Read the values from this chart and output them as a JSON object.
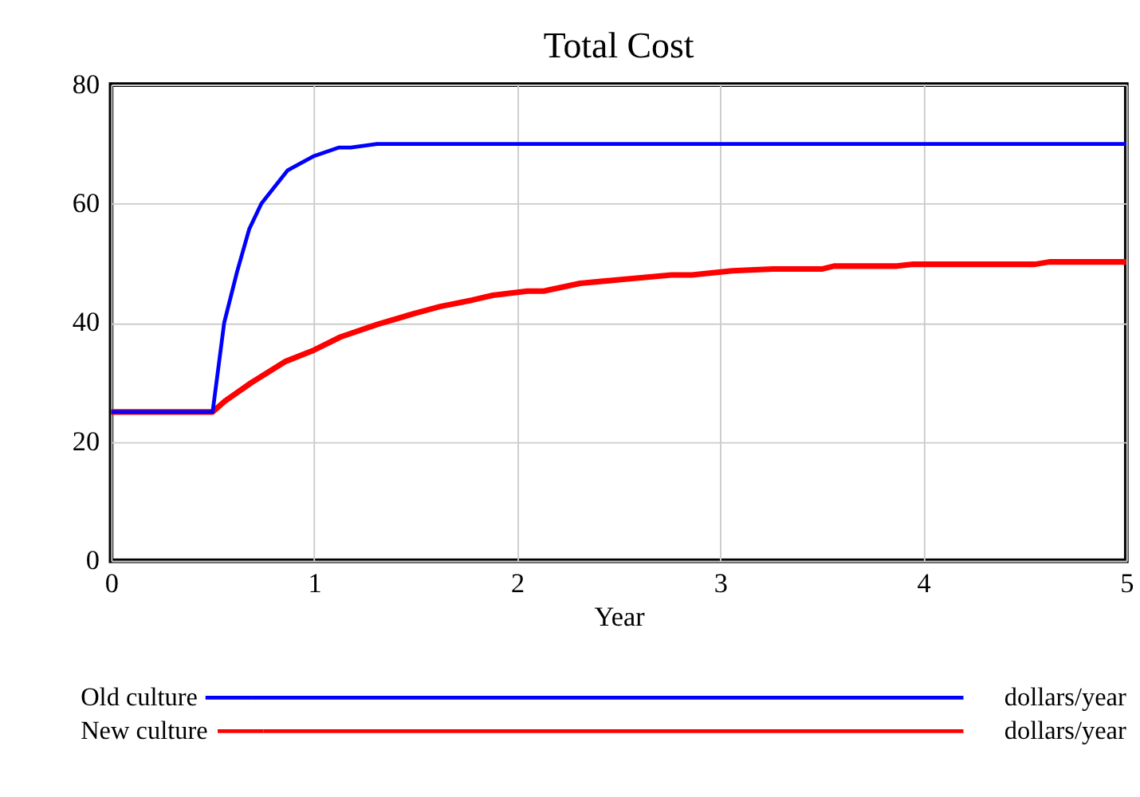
{
  "chart_data": {
    "type": "line",
    "title": "Total Cost",
    "xlabel": "Year",
    "xlim": [
      0,
      5
    ],
    "xticks": [
      0,
      1,
      2,
      3,
      4,
      5
    ],
    "ylim": [
      0,
      80
    ],
    "yticks": [
      0,
      20,
      40,
      60,
      80
    ],
    "grid": true,
    "legend": "bottom",
    "line_style": "solid",
    "marker": "none",
    "annotations": [
      "dollars/year",
      "dollars/year"
    ],
    "series": [
      {
        "name": "Old culture",
        "color": "#0000ff",
        "x": [
          0,
          0.5,
          0.557,
          0.62,
          0.68,
          0.74,
          0.87,
          1.0,
          1.12,
          1.18,
          1.31,
          5
        ],
        "values": [
          25,
          25,
          40,
          48.5,
          55.7,
          60,
          65.6,
          68,
          69.4,
          69.4,
          70,
          70
        ]
      },
      {
        "name": "New culture",
        "color": "#ff0000",
        "x": [
          0,
          0.5,
          0.56,
          0.69,
          0.86,
          1.0,
          1.13,
          1.31,
          1.5,
          1.62,
          1.78,
          1.88,
          2.05,
          2.13,
          2.31,
          2.5,
          2.76,
          2.86,
          3.06,
          3.26,
          3.5,
          3.56,
          3.87,
          3.95,
          4.55,
          4.62,
          5
        ],
        "values": [
          25,
          25,
          26.8,
          29.9,
          33.5,
          35.4,
          37.6,
          39.7,
          41.6,
          42.7,
          43.8,
          44.6,
          45.3,
          45.3,
          46.6,
          47.2,
          48,
          48,
          48.7,
          49,
          49,
          49.5,
          49.5,
          49.8,
          49.8,
          50.2,
          50.2
        ]
      }
    ]
  }
}
